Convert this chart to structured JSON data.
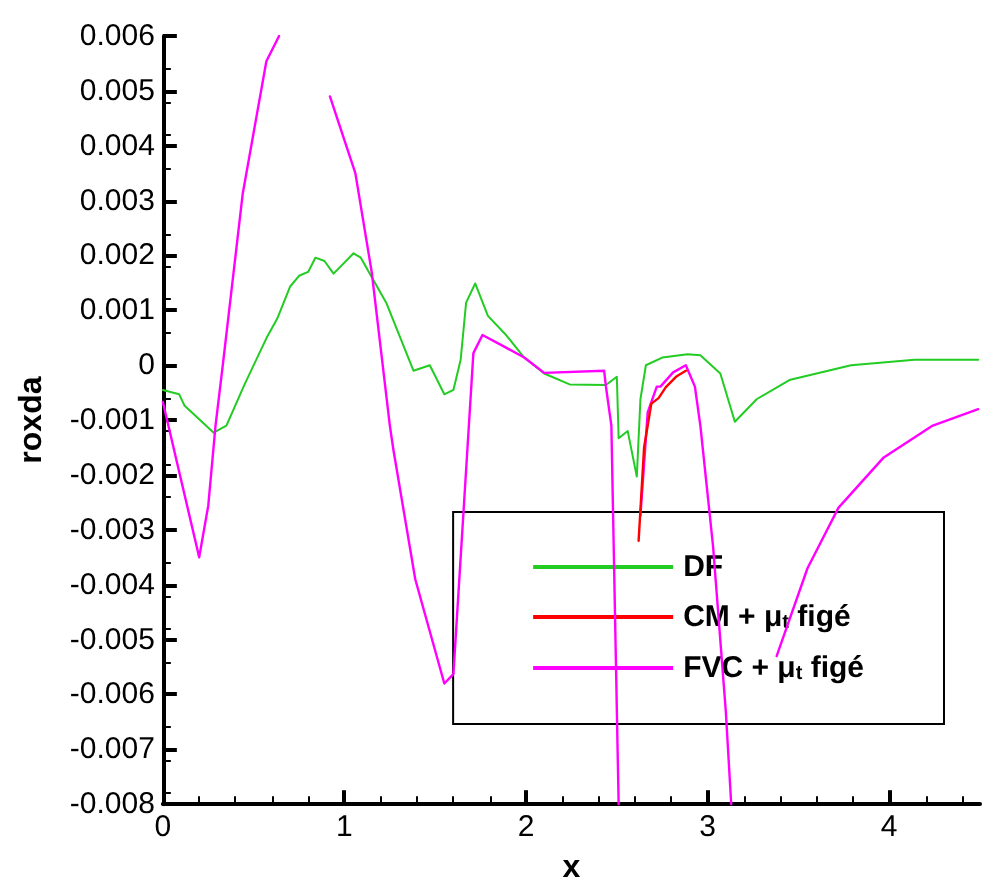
{
  "chart_data": {
    "type": "line",
    "xlabel": "x",
    "ylabel": "roxda",
    "xlim": [
      0,
      4.5
    ],
    "xticks": [
      0,
      1,
      2,
      3,
      4
    ],
    "ylim": [
      -0.008,
      0.006
    ],
    "yticks": [
      -0.008,
      -0.007,
      -0.006,
      -0.005,
      -0.004,
      -0.003,
      -0.002,
      -0.001,
      0,
      0.001,
      0.002,
      0.003,
      0.004,
      0.005,
      0.006
    ],
    "grid": false,
    "legend": "bottom right",
    "marker": "none",
    "line_style": "solid",
    "series": [
      {
        "name": "DF",
        "color": "#22cc22",
        "x": [
          0,
          0.09,
          0.12,
          0.28,
          0.35,
          0.45,
          0.57,
          0.63,
          0.7,
          0.75,
          0.8,
          0.84,
          0.89,
          0.94,
          1.05,
          1.09,
          1.23,
          1.38,
          1.47,
          1.55,
          1.6,
          1.64,
          1.67,
          1.72,
          1.79,
          1.89,
          1.99,
          2.1,
          2.24,
          2.44,
          2.5,
          2.51,
          2.56,
          2.61,
          2.63,
          2.66,
          2.75,
          2.89,
          2.96,
          3.07,
          3.15,
          3.27,
          3.45,
          3.79,
          4.14,
          4.49
        ],
        "values": [
          -0.00045,
          -0.00053,
          -0.00074,
          -0.00123,
          -0.0011,
          -0.00035,
          0.00049,
          0.00085,
          0.00143,
          0.00163,
          0.0017,
          0.00196,
          0.0019,
          0.00167,
          0.00204,
          0.00196,
          0.00114,
          -0.0001,
          0,
          -0.00053,
          -0.00045,
          0.0001,
          0.00114,
          0.00149,
          0.0009,
          0.00055,
          0.00014,
          -0.00015,
          -0.00035,
          -0.00036,
          -0.00021,
          -0.00133,
          -0.0012,
          -0.00203,
          -0.00062,
          0,
          0.00014,
          0.0002,
          0.00018,
          -0.00015,
          -0.00103,
          -0.00062,
          -0.00027,
          0,
          0.0001,
          0.0001
        ]
      },
      {
        "name": "CM + μ$_{t}$ figé",
        "color": "#ff0000",
        "x": [
          2.62,
          2.65,
          2.69,
          2.73,
          2.77,
          2.83,
          2.88
        ],
        "values": [
          -0.0032,
          -0.0015,
          -0.0007,
          -0.0006,
          -0.0004,
          -0.0002,
          -0.0001
        ]
      },
      {
        "name": "FVC + μ$_{t}$ figé",
        "color": "#ff00ff",
        "x": [
          0,
          0.2,
          0.25,
          0.29,
          0.33,
          0.44,
          0.57,
          0.64,
          0.78,
          0.92,
          1.06,
          1.15,
          1.25,
          1.27,
          1.39,
          1.55,
          1.6,
          1.71,
          1.76,
          1.89,
          1.99,
          2.1,
          2.43,
          2.44,
          2.47,
          2.51,
          2.6,
          2.63,
          2.67,
          2.72,
          2.74,
          2.81,
          2.88,
          2.93,
          2.96,
          3.03,
          3.1,
          3.13,
          3.24,
          3.38,
          3.55,
          3.72,
          3.97,
          4.24,
          4.49
        ],
        "values": [
          -0.00067,
          -0.0035,
          -0.00256,
          -0.0011,
          0,
          0.00313,
          0.00554,
          0.006,
          null,
          0.0049,
          0.0035,
          0.0017,
          -0.0011,
          -0.00155,
          -0.0039,
          -0.0058,
          -0.00563,
          0.00022,
          0.00055,
          0.00032,
          0.00014,
          -0.00014,
          -0.0001,
          -0.00039,
          -0.0011,
          -0.008,
          null,
          -0.00274,
          -0.00086,
          -0.00039,
          -0.00039,
          -0.00013,
          0,
          -0.00039,
          -0.0011,
          -0.0033,
          -0.0063,
          -0.008,
          null,
          -0.0053,
          -0.0037,
          -0.0026,
          -0.00168,
          -0.0011,
          -0.0008
        ]
      }
    ]
  }
}
